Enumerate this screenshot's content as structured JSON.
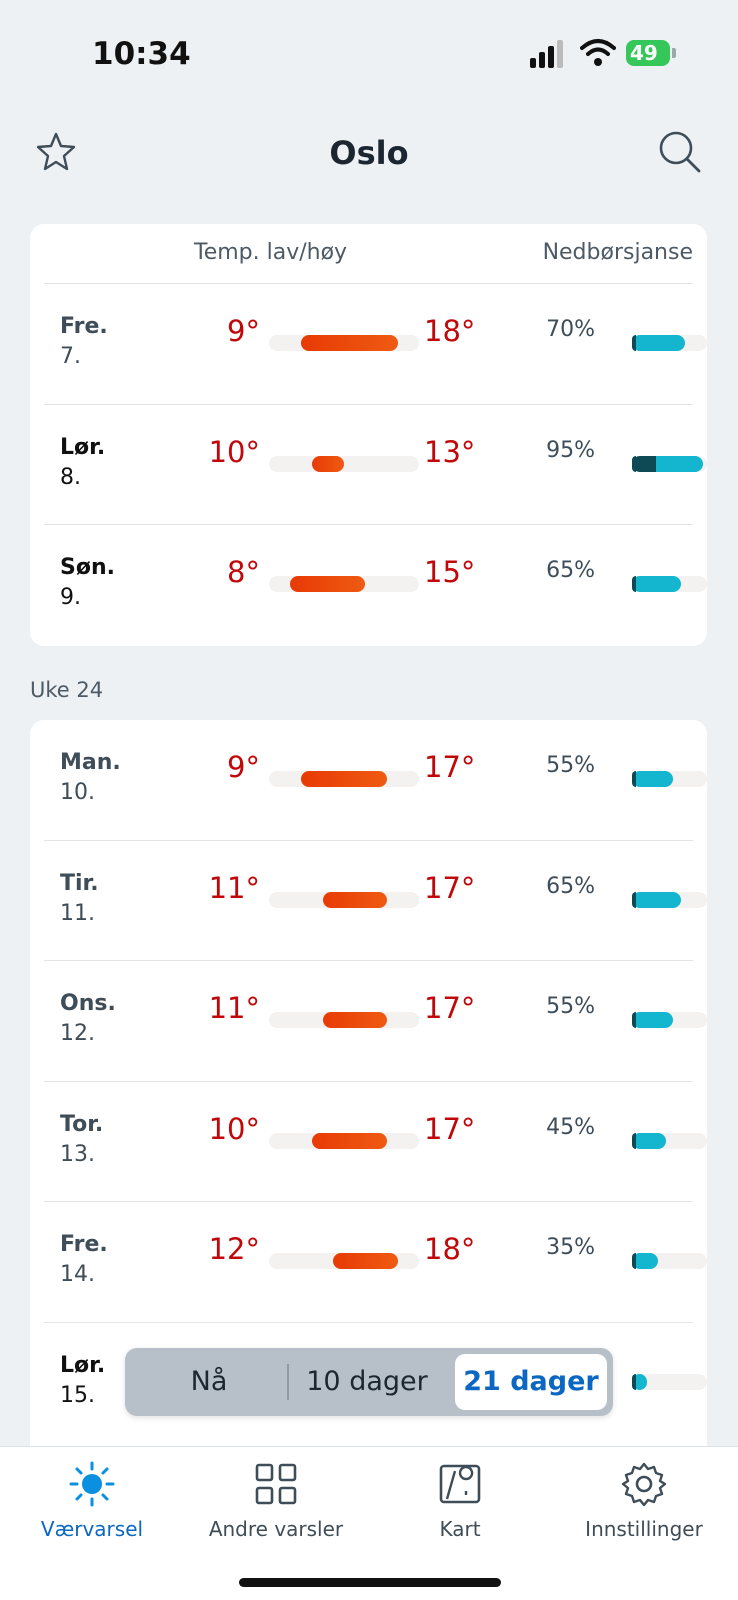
{
  "status": {
    "time": "10:34",
    "battery": "49"
  },
  "header": {
    "title": "Oslo"
  },
  "columns": {
    "temp": "Temp. lav/høy",
    "rain": "Nedbørsjanse"
  },
  "week_label": "Uke 24",
  "days_top": [
    {
      "name": "Fre.",
      "date": "7.",
      "low": "9°",
      "high": "18°",
      "rain": "70%",
      "low_val": 9,
      "high_val": 18,
      "rain_val": 70
    },
    {
      "name": "Lør.",
      "date": "8.",
      "low": "10°",
      "high": "13°",
      "rain": "95%",
      "low_val": 10,
      "high_val": 13,
      "rain_val": 95
    },
    {
      "name": "Søn.",
      "date": "9.",
      "low": "8°",
      "high": "15°",
      "rain": "65%",
      "low_val": 8,
      "high_val": 15,
      "rain_val": 65
    }
  ],
  "days_week": [
    {
      "name": "Man.",
      "date": "10.",
      "low": "9°",
      "high": "17°",
      "rain": "55%",
      "low_val": 9,
      "high_val": 17,
      "rain_val": 55
    },
    {
      "name": "Tir.",
      "date": "11.",
      "low": "11°",
      "high": "17°",
      "rain": "65%",
      "low_val": 11,
      "high_val": 17,
      "rain_val": 65
    },
    {
      "name": "Ons.",
      "date": "12.",
      "low": "11°",
      "high": "17°",
      "rain": "55%",
      "low_val": 11,
      "high_val": 17,
      "rain_val": 55
    },
    {
      "name": "Tor.",
      "date": "13.",
      "low": "10°",
      "high": "17°",
      "rain": "45%",
      "low_val": 10,
      "high_val": 17,
      "rain_val": 45
    },
    {
      "name": "Fre.",
      "date": "14.",
      "low": "12°",
      "high": "18°",
      "rain": "35%",
      "low_val": 12,
      "high_val": 18,
      "rain_val": 35
    },
    {
      "name": "Lør.",
      "date": "15.",
      "low": "",
      "high": "",
      "rain": "",
      "low_val": null,
      "high_val": null,
      "rain_val": 20
    }
  ],
  "segmented": {
    "now": "Nå",
    "ten": "10 dager",
    "twentyone": "21 dager"
  },
  "tabs": {
    "forecast": "Værvarsel",
    "other": "Andre varsler",
    "map": "Kart",
    "settings": "Innstillinger"
  },
  "colors": {
    "accent": "#0b67c2",
    "temp": "#c0080b",
    "rain": "#13b5cf"
  }
}
